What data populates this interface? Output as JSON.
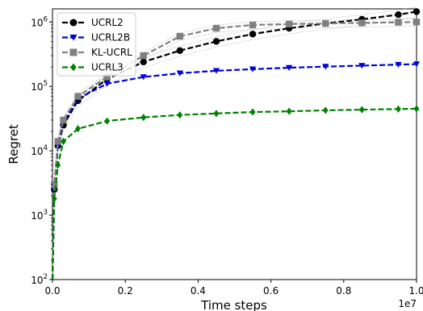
{
  "chart_data": {
    "type": "line",
    "xlabel": "Time steps",
    "ylabel": "Regret",
    "x_offset_label": "1e7",
    "x_scale": 10000000,
    "xlim": [
      0,
      1.0
    ],
    "ylim": [
      100,
      1600000
    ],
    "yscale": "log",
    "x_ticks": [
      0.0,
      0.2,
      0.4,
      0.6,
      0.8,
      1.0
    ],
    "x_tick_labels": [
      "0.0",
      "0.2",
      "0.4",
      "0.6",
      "0.8",
      "1.0"
    ],
    "y_ticks": [
      {
        "value": 100,
        "base": "10",
        "exp": "2"
      },
      {
        "value": 1000,
        "base": "10",
        "exp": "3"
      },
      {
        "value": 10000,
        "base": "10",
        "exp": "4"
      },
      {
        "value": 100000,
        "base": "10",
        "exp": "5"
      },
      {
        "value": 1000000,
        "base": "10",
        "exp": "6"
      }
    ],
    "legend_position": "top-left",
    "series": [
      {
        "name": "UCRL2",
        "color": "#000000",
        "marker": "circle",
        "x": [
          0,
          0.005,
          0.015,
          0.03,
          0.07,
          0.15,
          0.25,
          0.35,
          0.45,
          0.55,
          0.65,
          0.75,
          0.85,
          0.95,
          1.0
        ],
        "y": [
          100,
          2500,
          12000,
          25000,
          60000,
          130000,
          240000,
          360000,
          500000,
          650000,
          800000,
          950000,
          1100000,
          1300000,
          1450000
        ]
      },
      {
        "name": "UCRL2B",
        "color": "#0000dd",
        "marker": "triangle-down",
        "x": [
          0,
          0.005,
          0.015,
          0.03,
          0.07,
          0.15,
          0.25,
          0.35,
          0.45,
          0.55,
          0.65,
          0.75,
          0.85,
          0.95,
          1.0
        ],
        "y": [
          100,
          2500,
          12000,
          28000,
          65000,
          110000,
          140000,
          160000,
          175000,
          185000,
          195000,
          203000,
          210000,
          218000,
          222000
        ]
      },
      {
        "name": "KL-UCRL",
        "color": "#808080",
        "marker": "square",
        "x": [
          0,
          0.005,
          0.015,
          0.03,
          0.07,
          0.15,
          0.25,
          0.35,
          0.45,
          0.55,
          0.65,
          0.75,
          0.85,
          0.95,
          1.0
        ],
        "y": [
          100,
          3000,
          14000,
          30000,
          70000,
          140000,
          300000,
          600000,
          800000,
          900000,
          930000,
          950000,
          970000,
          990000,
          1000000
        ]
      },
      {
        "name": "UCRL3",
        "color": "#008000",
        "marker": "diamond",
        "x": [
          0,
          0.005,
          0.015,
          0.03,
          0.07,
          0.15,
          0.25,
          0.35,
          0.45,
          0.55,
          0.65,
          0.75,
          0.85,
          0.95,
          1.0
        ],
        "y": [
          100,
          1800,
          6000,
          14000,
          22000,
          29000,
          33000,
          36000,
          38000,
          40000,
          41000,
          42500,
          43500,
          44500,
          45000
        ]
      }
    ]
  }
}
